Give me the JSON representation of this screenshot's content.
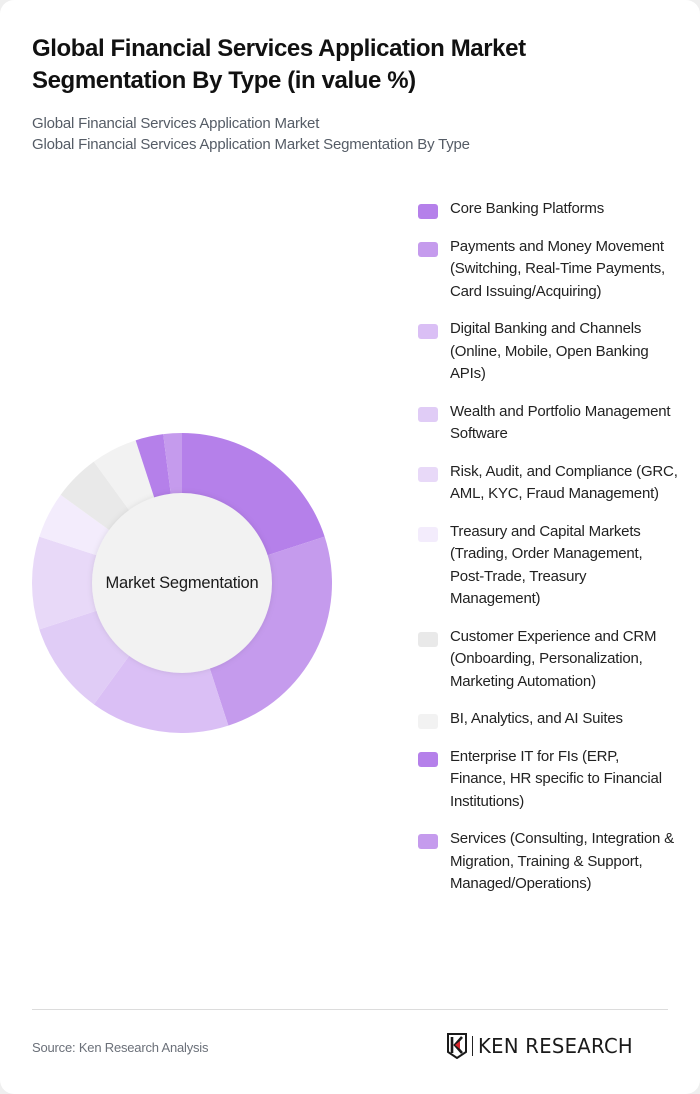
{
  "header": {
    "title": "Global Financial Services Application Market Segmentation By Type (in value %)",
    "subtitle_lines": [
      "Global Financial Services Application Market",
      "Global Financial Services Application Market Segmentation By Type"
    ]
  },
  "chart": {
    "center_label": "Market Segmentation"
  },
  "legend": {
    "items": [
      {
        "label": "Core Banking Platforms",
        "color": "#b580ea"
      },
      {
        "label": "Payments and Money Movement (Switching, Real-Time Payments, Card Issuing/Acquiring)",
        "color": "#c59bed"
      },
      {
        "label": "Digital Banking and Channels (Online, Mobile, Open Banking APIs)",
        "color": "#dabff5"
      },
      {
        "label": "Wealth and Portfolio Management Software",
        "color": "#e0ccf6"
      },
      {
        "label": "Risk, Audit, and Compliance (GRC, AML, KYC, Fraud Management)",
        "color": "#e8d9f8"
      },
      {
        "label": "Treasury and Capital Markets (Trading, Order Management, Post-Trade, Treasury Management)",
        "color": "#f3ecfc"
      },
      {
        "label": "Customer Experience and CRM (Onboarding, Personalization, Marketing Automation)",
        "color": "#e9e9e9"
      },
      {
        "label": "BI, Analytics, and AI Suites",
        "color": "#f2f2f2"
      },
      {
        "label": "Enterprise IT for FIs (ERP, Finance, HR specific to Financial Institutions)",
        "color": "#b580ea"
      },
      {
        "label": "Services (Consulting, Integration & Migration, Training & Support, Managed/Operations)",
        "color": "#c59bed"
      }
    ]
  },
  "footer": {
    "source": "Source: Ken Research Analysis",
    "logo_text": "KEN RESEARCH"
  },
  "chart_data": {
    "type": "pie",
    "subtype": "donut",
    "title": "Global Financial Services Application Market Segmentation By Type (in value %)",
    "subtitle": "Global Financial Services Application Market Segmentation By Type",
    "center_label": "Market Segmentation",
    "categories": [
      "Core Banking Platforms",
      "Payments and Money Movement (Switching, Real-Time Payments, Card Issuing/Acquiring)",
      "Digital Banking and Channels (Online, Mobile, Open Banking APIs)",
      "Wealth and Portfolio Management Software",
      "Risk, Audit, and Compliance (GRC, AML, KYC, Fraud Management)",
      "Treasury and Capital Markets (Trading, Order Management, Post-Trade, Treasury Management)",
      "Customer Experience and CRM (Onboarding, Personalization, Marketing Automation)",
      "BI, Analytics, and AI Suites",
      "Enterprise IT for FIs (ERP, Finance, HR specific to Financial Institutions)",
      "Services (Consulting, Integration & Migration, Training & Support, Managed/Operations)"
    ],
    "values": [
      20,
      25,
      15,
      10,
      10,
      5,
      5,
      5,
      3,
      2
    ],
    "colors": [
      "#b580ea",
      "#c59bed",
      "#dabff5",
      "#e0ccf6",
      "#e8d9f8",
      "#f3ecfc",
      "#e9e9e9",
      "#f2f2f2",
      "#b580ea",
      "#c59bed"
    ],
    "unit": "%",
    "start_angle": "12 o'clock, clockwise",
    "legend_position": "right",
    "source": "Source: Ken Research Analysis"
  }
}
